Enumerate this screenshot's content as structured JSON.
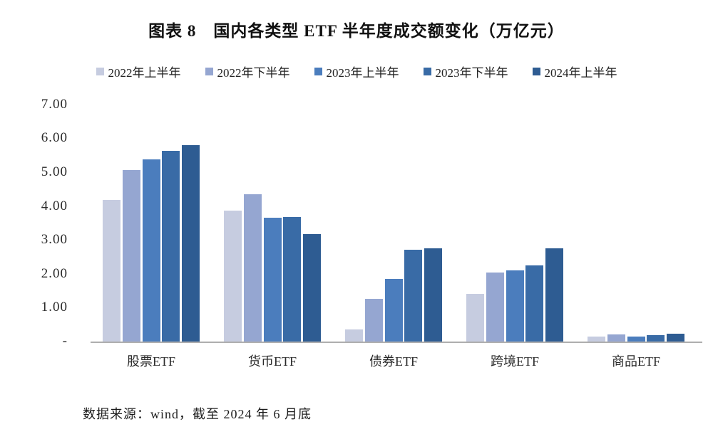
{
  "title": "图表 8　国内各类型 ETF 半年度成交额变化（万亿元）",
  "source_note": "数据来源：wind，截至 2024 年 6 月底",
  "colors": {
    "axis_line": "#aeaeae",
    "text": "#1f1f1f"
  },
  "chart_data": {
    "type": "bar",
    "title": "图表 8 国内各类型 ETF 半年度成交额变化（万亿元）",
    "xlabel": "",
    "ylabel": "",
    "ylim": [
      0,
      7
    ],
    "grid": false,
    "legend_position": "top",
    "categories": [
      "股票ETF",
      "货币ETF",
      "债券ETF",
      "跨境ETF",
      "商品ETF"
    ],
    "series": [
      {
        "name": "2022年上半年",
        "color": "#c6cce0",
        "values": [
          4.18,
          3.87,
          0.36,
          1.4,
          0.15
        ]
      },
      {
        "name": "2022年下半年",
        "color": "#95a6d1",
        "values": [
          5.06,
          4.35,
          1.25,
          2.03,
          0.22
        ]
      },
      {
        "name": "2023年上半年",
        "color": "#4b7dbd",
        "values": [
          5.37,
          3.66,
          1.85,
          2.1,
          0.15
        ]
      },
      {
        "name": "2023年下半年",
        "color": "#396ba6",
        "values": [
          5.64,
          3.68,
          2.7,
          2.25,
          0.18
        ]
      },
      {
        "name": "2024年上半年",
        "color": "#2e5c92",
        "values": [
          5.8,
          3.18,
          2.75,
          2.75,
          0.24
        ]
      }
    ],
    "yticks": [
      {
        "value": 0,
        "label": "-"
      },
      {
        "value": 1,
        "label": "1.00"
      },
      {
        "value": 2,
        "label": "2.00"
      },
      {
        "value": 3,
        "label": "3.00"
      },
      {
        "value": 4,
        "label": "4.00"
      },
      {
        "value": 5,
        "label": "5.00"
      },
      {
        "value": 6,
        "label": "6.00"
      },
      {
        "value": 7,
        "label": "7.00"
      }
    ]
  }
}
